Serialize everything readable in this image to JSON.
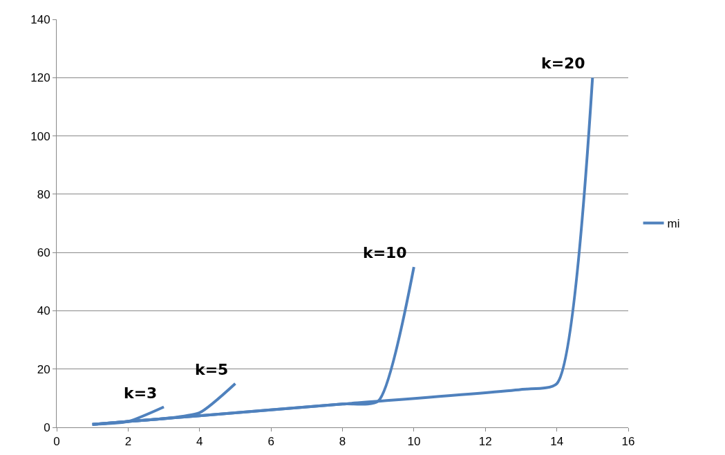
{
  "chart_data": {
    "type": "line",
    "x": [
      1,
      2,
      3,
      null,
      1,
      2,
      3,
      4,
      5,
      null,
      1,
      2,
      4,
      8,
      9,
      10,
      null,
      1,
      2,
      4,
      8,
      13,
      14,
      15
    ],
    "series": [
      {
        "name": "mi",
        "color": "#4f81bd",
        "values": [
          1,
          2,
          7,
          null,
          1,
          2,
          3,
          5,
          15,
          null,
          1,
          2,
          4,
          8,
          9,
          55,
          null,
          1,
          2,
          4,
          8,
          13,
          15,
          120
        ]
      }
    ],
    "xlim": [
      0,
      16
    ],
    "xticks": [
      0,
      2,
      4,
      6,
      8,
      10,
      12,
      14,
      16
    ],
    "ylim": [
      0,
      140
    ],
    "yticks": [
      0,
      20,
      40,
      60,
      80,
      100,
      120,
      140
    ],
    "grid": "y",
    "legend": "right",
    "marker": "none",
    "line_style": "solid",
    "annotations": [
      {
        "text": "k=3",
        "x": 3,
        "y": 7
      },
      {
        "text": "k=5",
        "x": 5,
        "y": 15
      },
      {
        "text": "k=10",
        "x": 10,
        "y": 55
      },
      {
        "text": "k=20",
        "x": 15,
        "y": 120
      }
    ]
  }
}
